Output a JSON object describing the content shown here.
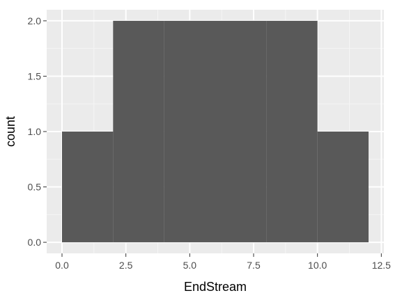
{
  "chart_data": {
    "type": "bar",
    "subtype": "histogram",
    "bins": [
      {
        "x0": 0,
        "x1": 2,
        "count": 1
      },
      {
        "x0": 2,
        "x1": 4,
        "count": 2
      },
      {
        "x0": 4,
        "x1": 6,
        "count": 2
      },
      {
        "x0": 6,
        "x1": 8,
        "count": 2
      },
      {
        "x0": 8,
        "x1": 10,
        "count": 2
      },
      {
        "x0": 10,
        "x1": 12,
        "count": 1
      }
    ],
    "xlabel": "EndStream",
    "ylabel": "count",
    "xlim": [
      -0.6,
      12.6
    ],
    "ylim": [
      -0.1,
      2.1
    ],
    "x_ticks": [
      "0.0",
      "2.5",
      "5.0",
      "7.5",
      "10.0",
      "12.5"
    ],
    "x_tick_values": [
      0,
      2.5,
      5,
      7.5,
      10,
      12.5
    ],
    "y_ticks": [
      "0.0",
      "0.5",
      "1.0",
      "1.5",
      "2.0"
    ],
    "y_tick_values": [
      0,
      0.5,
      1,
      1.5,
      2
    ],
    "grid": true,
    "colors": {
      "bar": "#595959",
      "panel": "#ebebeb",
      "grid_major": "#ffffff",
      "grid_minor": "#f5f5f5",
      "tick": "#333333"
    }
  }
}
